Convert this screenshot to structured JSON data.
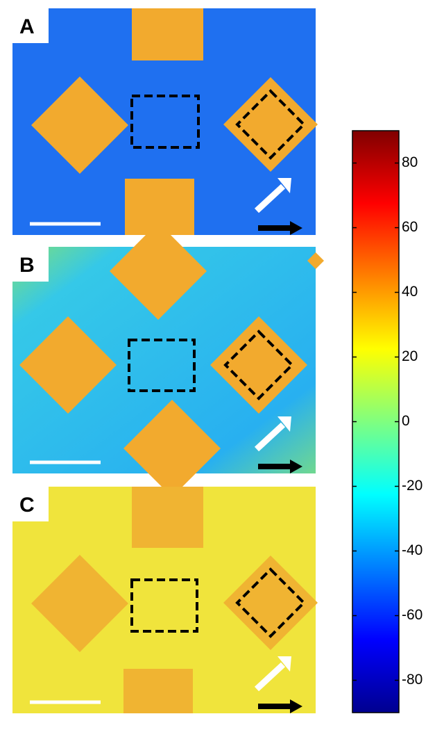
{
  "panels": [
    {
      "label": "A"
    },
    {
      "label": "B"
    },
    {
      "label": "C"
    }
  ],
  "colorbar": {
    "lim": [
      -90,
      90
    ],
    "ticks": [
      80,
      60,
      40,
      20,
      0,
      -20,
      -40,
      -60,
      -80
    ]
  }
}
